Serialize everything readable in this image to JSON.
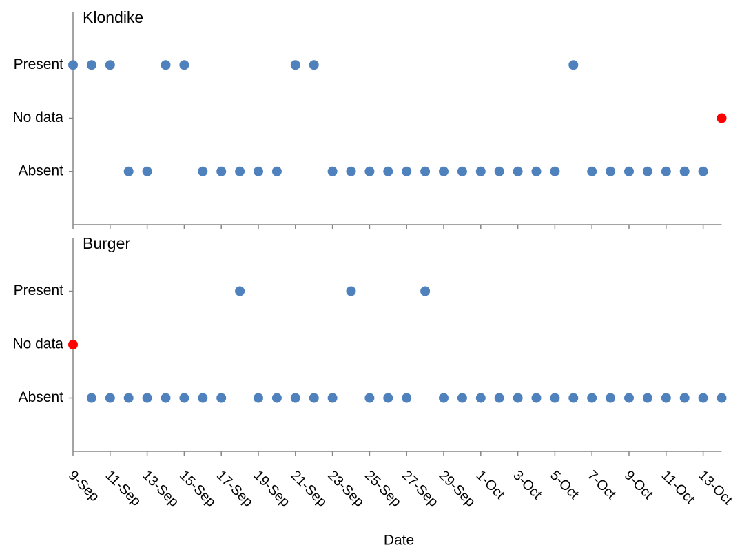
{
  "chart_data": [
    {
      "type": "scatter",
      "title": "Klondike",
      "values": [
        2,
        2,
        2,
        0,
        0,
        2,
        2,
        0,
        0,
        0,
        0,
        0,
        2,
        2,
        0,
        0,
        0,
        0,
        0,
        0,
        0,
        0,
        0,
        0,
        0,
        0,
        0,
        2,
        0,
        0,
        0,
        0,
        0,
        0,
        0,
        1
      ],
      "point_colors": [
        "#4f81bd",
        "#4f81bd",
        "#4f81bd",
        "#4f81bd",
        "#4f81bd",
        "#4f81bd",
        "#4f81bd",
        "#4f81bd",
        "#4f81bd",
        "#4f81bd",
        "#4f81bd",
        "#4f81bd",
        "#4f81bd",
        "#4f81bd",
        "#4f81bd",
        "#4f81bd",
        "#4f81bd",
        "#4f81bd",
        "#4f81bd",
        "#4f81bd",
        "#4f81bd",
        "#4f81bd",
        "#4f81bd",
        "#4f81bd",
        "#4f81bd",
        "#4f81bd",
        "#4f81bd",
        "#4f81bd",
        "#4f81bd",
        "#4f81bd",
        "#4f81bd",
        "#4f81bd",
        "#4f81bd",
        "#4f81bd",
        "#4f81bd",
        "#ff0000"
      ],
      "ylim": [
        -1,
        3
      ],
      "yticks": [
        {
          "value": 0,
          "label": "Absent"
        },
        {
          "value": 1,
          "label": "No data"
        },
        {
          "value": 2,
          "label": "Present"
        }
      ]
    },
    {
      "type": "scatter",
      "title": "Burger",
      "x_label": "Date",
      "categories": [
        "9-Sep",
        null,
        "11-Sep",
        null,
        "13-Sep",
        null,
        "15-Sep",
        null,
        "17-Sep",
        null,
        "19-Sep",
        null,
        "21-Sep",
        null,
        "23-Sep",
        null,
        "25-Sep",
        null,
        "27-Sep",
        null,
        "29-Sep",
        null,
        "1-Oct",
        null,
        "3-Oct",
        null,
        "5-Oct",
        null,
        "7-Oct",
        null,
        "9-Oct",
        null,
        "11-Oct",
        null,
        "13-Oct",
        null
      ],
      "values": [
        1,
        0,
        0,
        0,
        0,
        0,
        0,
        0,
        0,
        2,
        0,
        0,
        0,
        0,
        0,
        2,
        0,
        0,
        0,
        2,
        0,
        0,
        0,
        0,
        0,
        0,
        0,
        0,
        0,
        0,
        0,
        0,
        0,
        0,
        0,
        0
      ],
      "point_colors": [
        "#ff0000",
        "#4f81bd",
        "#4f81bd",
        "#4f81bd",
        "#4f81bd",
        "#4f81bd",
        "#4f81bd",
        "#4f81bd",
        "#4f81bd",
        "#4f81bd",
        "#4f81bd",
        "#4f81bd",
        "#4f81bd",
        "#4f81bd",
        "#4f81bd",
        "#4f81bd",
        "#4f81bd",
        "#4f81bd",
        "#4f81bd",
        "#4f81bd",
        "#4f81bd",
        "#4f81bd",
        "#4f81bd",
        "#4f81bd",
        "#4f81bd",
        "#4f81bd",
        "#4f81bd",
        "#4f81bd",
        "#4f81bd",
        "#4f81bd",
        "#4f81bd",
        "#4f81bd",
        "#4f81bd",
        "#4f81bd",
        "#4f81bd",
        "#4f81bd"
      ],
      "ylim": [
        -1,
        3
      ],
      "yticks": [
        {
          "value": 0,
          "label": "Absent"
        },
        {
          "value": 1,
          "label": "No data"
        },
        {
          "value": 2,
          "label": "Present"
        }
      ]
    }
  ]
}
